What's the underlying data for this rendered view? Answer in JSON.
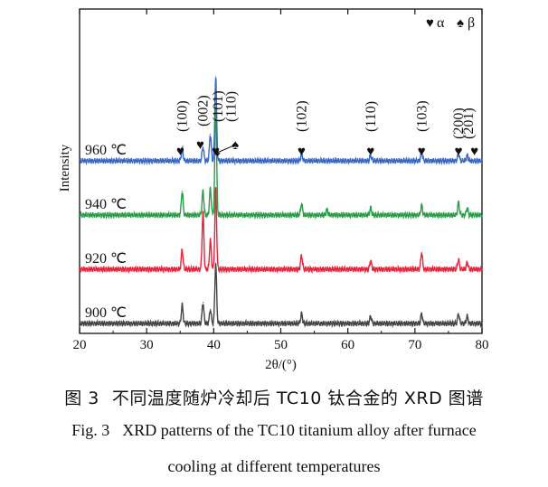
{
  "chart_data": {
    "type": "line",
    "xlabel": "2θ/(°)",
    "ylabel": "Intensity",
    "xlim": [
      20,
      80
    ],
    "xticks": [
      20,
      30,
      40,
      50,
      60,
      70,
      80
    ],
    "ylim": [
      0,
      4
    ],
    "yticks_shown": false,
    "legend": {
      "position": "top-right",
      "entries": [
        {
          "symbol": "♥",
          "phase": "α"
        },
        {
          "symbol": "♠",
          "phase": "β"
        }
      ]
    },
    "series": [
      {
        "name": "900 ℃",
        "color": "#444444",
        "baseline": 0,
        "peaks": [
          {
            "x": 35.3,
            "h": 0.13
          },
          {
            "x": 38.4,
            "h": 0.15
          },
          {
            "x": 39.5,
            "h": 0.1
          },
          {
            "x": 40.3,
            "h": 0.43
          },
          {
            "x": 53.1,
            "h": 0.07
          },
          {
            "x": 63.4,
            "h": 0.05
          },
          {
            "x": 71.0,
            "h": 0.07
          },
          {
            "x": 76.5,
            "h": 0.07
          },
          {
            "x": 77.8,
            "h": 0.05
          }
        ]
      },
      {
        "name": "920 ℃",
        "color": "#e8223b",
        "baseline": 1,
        "peaks": [
          {
            "x": 35.3,
            "h": 0.14
          },
          {
            "x": 38.4,
            "h": 0.41
          },
          {
            "x": 39.5,
            "h": 0.21
          },
          {
            "x": 40.3,
            "h": 0.58
          },
          {
            "x": 53.1,
            "h": 0.1
          },
          {
            "x": 63.4,
            "h": 0.06
          },
          {
            "x": 71.0,
            "h": 0.12
          },
          {
            "x": 76.5,
            "h": 0.07
          },
          {
            "x": 77.8,
            "h": 0.05
          }
        ]
      },
      {
        "name": "940 ℃",
        "color": "#2a9d48",
        "baseline": 2,
        "peaks": [
          {
            "x": 35.3,
            "h": 0.17
          },
          {
            "x": 38.4,
            "h": 0.17
          },
          {
            "x": 39.5,
            "h": 0.19
          },
          {
            "x": 40.3,
            "h": 0.79
          },
          {
            "x": 53.1,
            "h": 0.08
          },
          {
            "x": 56.9,
            "h": 0.04
          },
          {
            "x": 63.4,
            "h": 0.05
          },
          {
            "x": 71.0,
            "h": 0.07
          },
          {
            "x": 76.5,
            "h": 0.09
          },
          {
            "x": 77.8,
            "h": 0.05
          }
        ]
      },
      {
        "name": "960 ℃",
        "color": "#3868c4",
        "baseline": 3,
        "peaks": [
          {
            "x": 35.3,
            "h": 0.09
          },
          {
            "x": 38.4,
            "h": 0.1
          },
          {
            "x": 39.5,
            "h": 0.19
          },
          {
            "x": 40.3,
            "h": 0.6
          },
          {
            "x": 53.1,
            "h": 0.05
          },
          {
            "x": 63.4,
            "h": 0.04
          },
          {
            "x": 71.0,
            "h": 0.07
          },
          {
            "x": 76.5,
            "h": 0.05
          },
          {
            "x": 77.8,
            "h": 0.04
          }
        ]
      }
    ],
    "peak_annotations": [
      {
        "label": "(100)",
        "x": 35.3,
        "phase": "α"
      },
      {
        "label": "(002)",
        "x": 38.4,
        "phase": "α"
      },
      {
        "label": "(101)",
        "x": 40.3,
        "phase": "α"
      },
      {
        "label": "(110)",
        "x": 39.5,
        "phase": "β"
      },
      {
        "label": "(102)",
        "x": 53.1,
        "phase": "α"
      },
      {
        "label": "(110)",
        "x": 63.4,
        "phase": "α"
      },
      {
        "label": "(103)",
        "x": 71.0,
        "phase": "α"
      },
      {
        "label": "(200)",
        "x": 76.5,
        "phase": "α"
      },
      {
        "label": "(201)",
        "x": 77.8,
        "phase": "α"
      }
    ]
  },
  "caption": {
    "cn_label": "图 3",
    "cn_text": "不同温度随炉冷却后 TC10 钛合金的 XRD 图谱",
    "en_label": "Fig. 3",
    "en_text_line1": "XRD patterns of the TC10 titanium alloy after furnace",
    "en_text_line2": "cooling at different temperatures"
  }
}
